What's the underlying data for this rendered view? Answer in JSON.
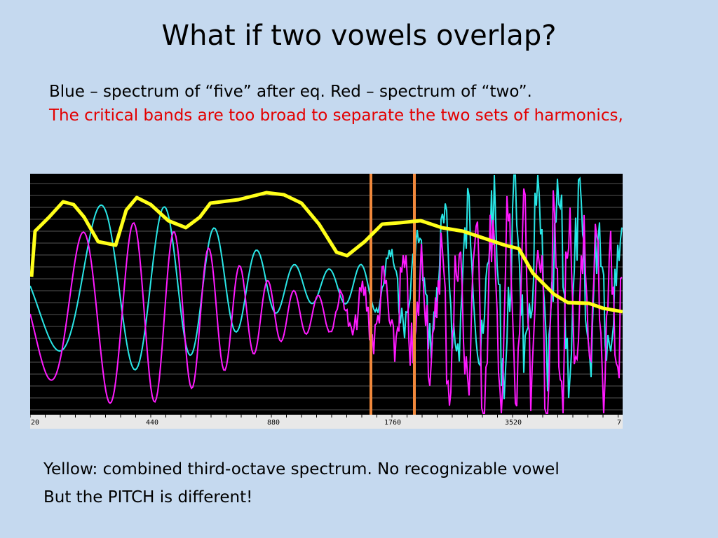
{
  "title": "What if two vowels overlap?",
  "body": [
    "Blue – spectrum of “five” after eq. Red – spectrum of “two”.",
    "The critical bands are too broad to separate the two sets of harmonics,"
  ],
  "image": {
    "axis_labels": [
      "20",
      "440",
      "880",
      "1760",
      "3520",
      "7"
    ]
  },
  "footer": [
    "Yellow: combined third-octave spectrum. No recognizable vowel",
    "But the PITCH is different!"
  ]
}
